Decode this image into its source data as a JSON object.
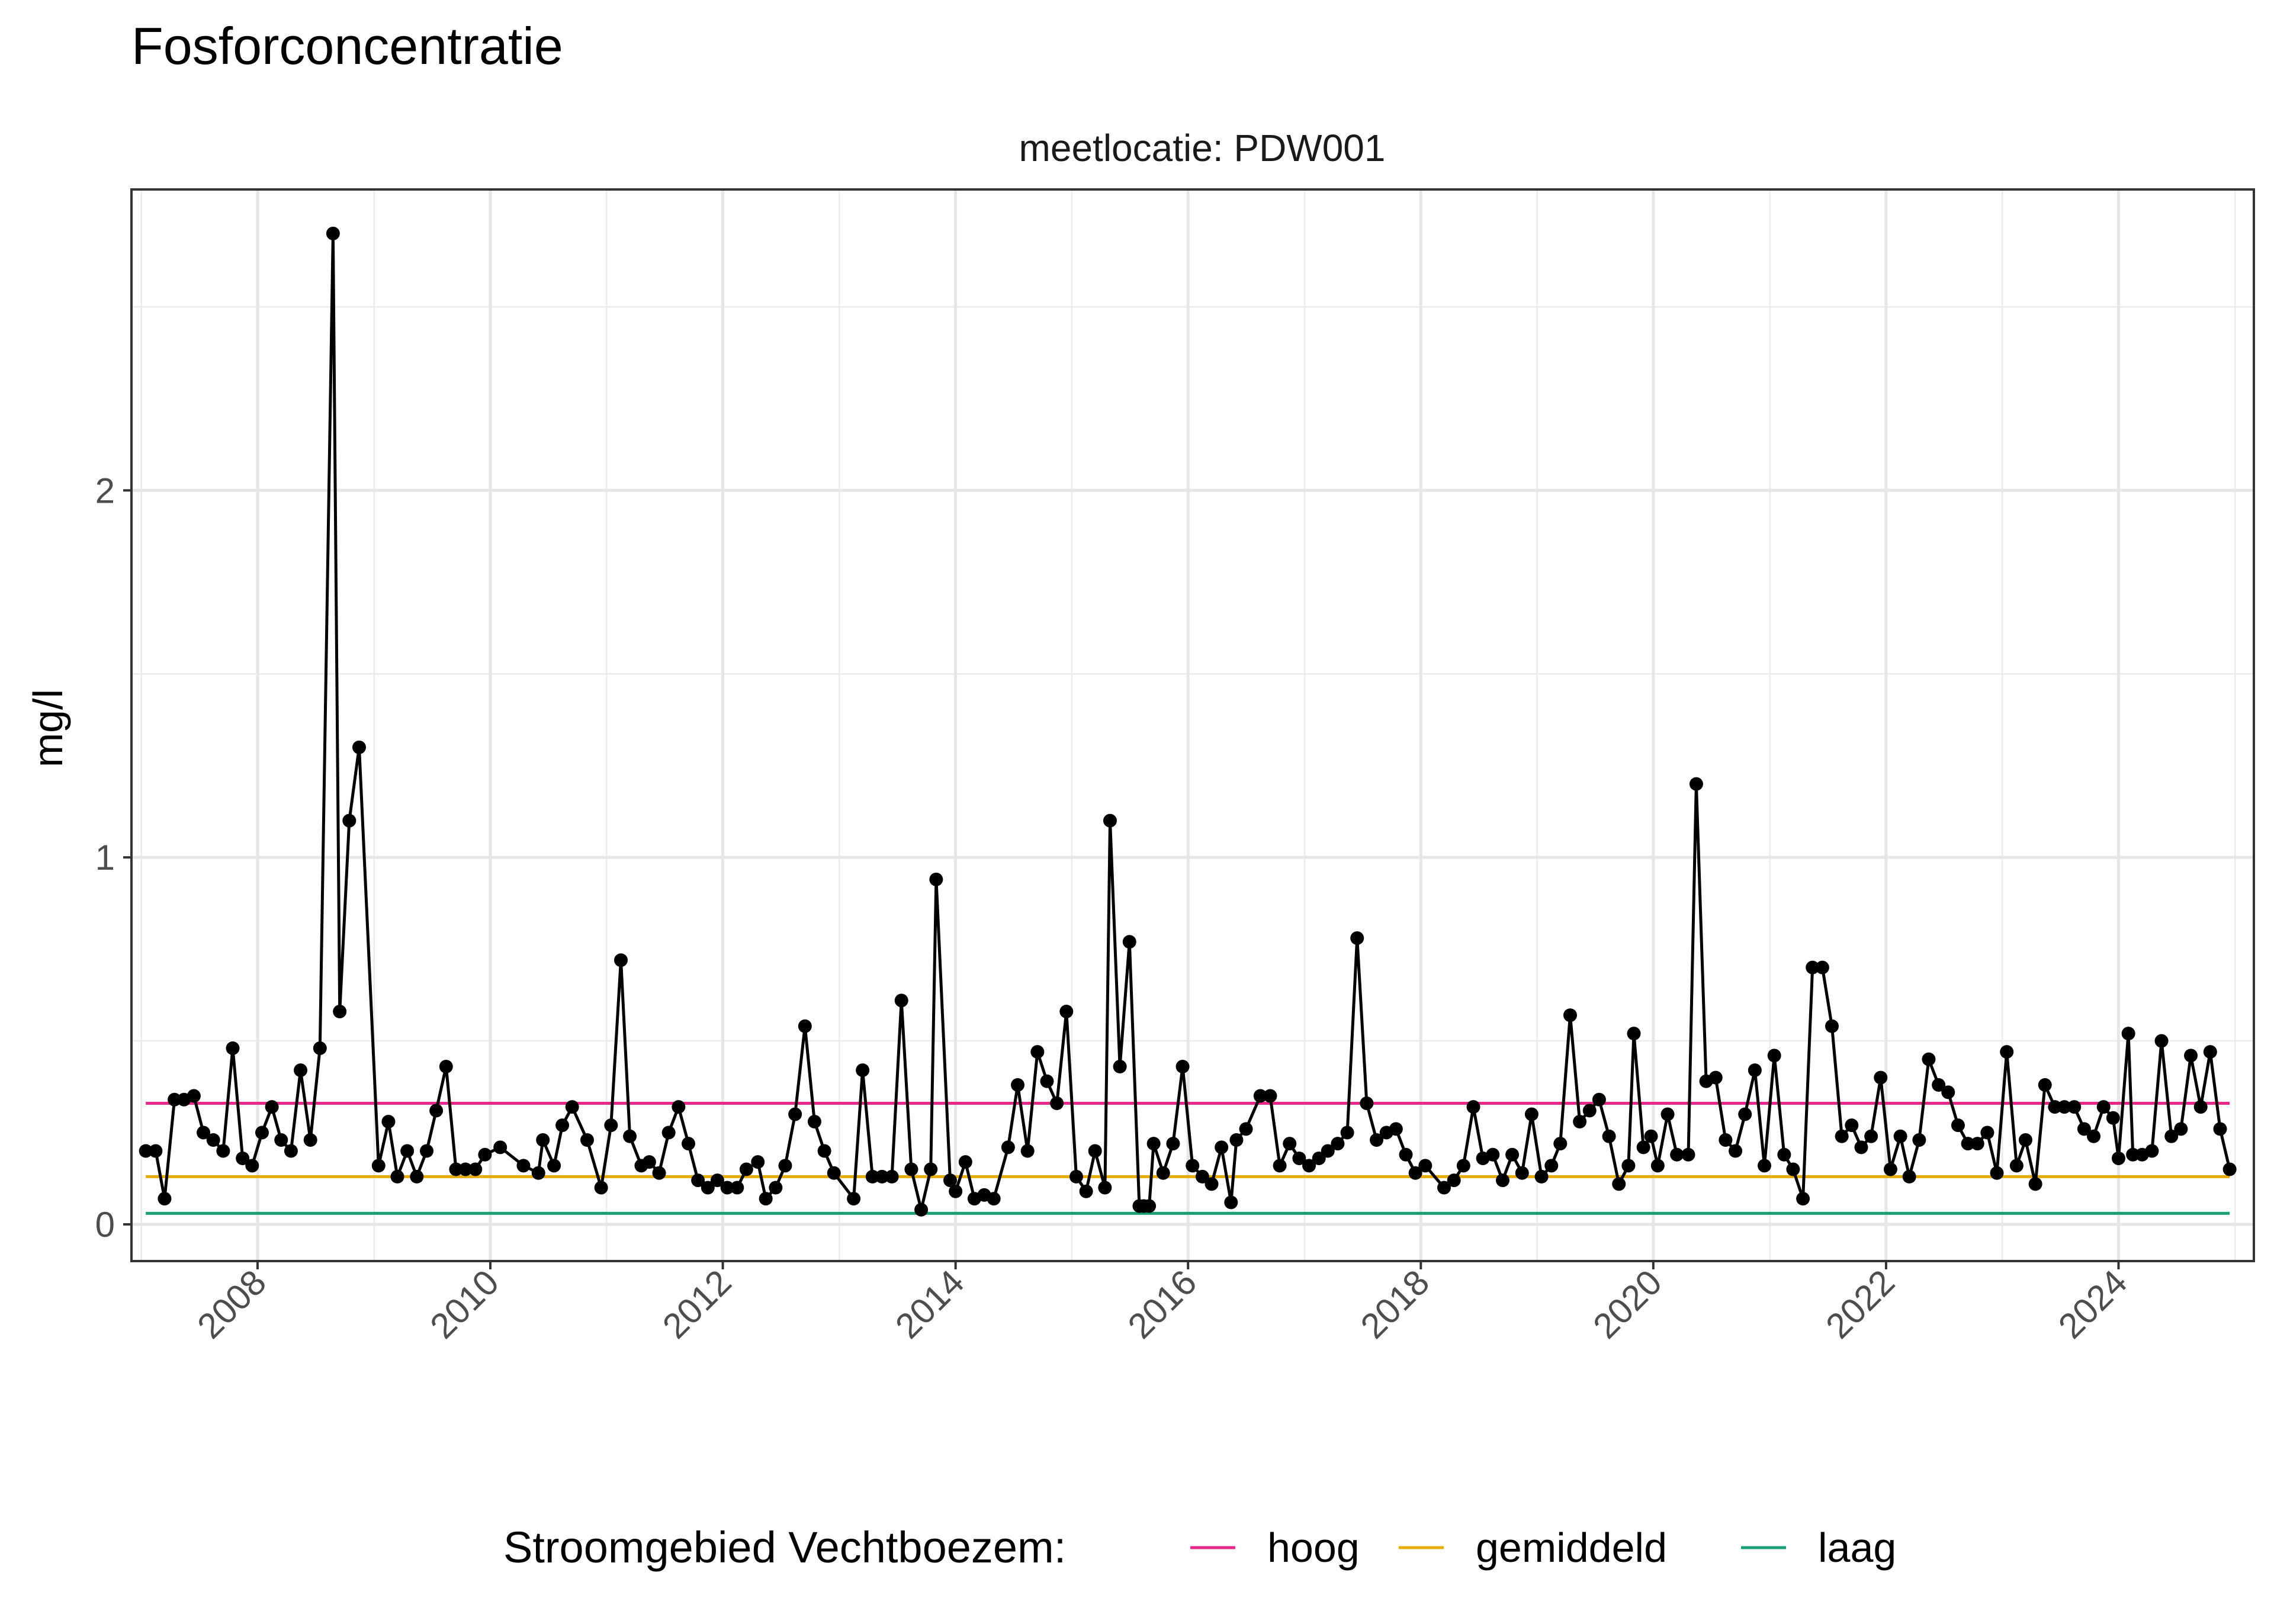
{
  "chart_data": {
    "type": "line",
    "title": "Fosforconcentratie",
    "subtitle": "meetlocatie: PDW001",
    "ylabel": "mg/l",
    "xlabel": "",
    "xlim": [
      "2006-12-01",
      "2025-03-01"
    ],
    "ylim": [
      -0.1,
      2.82
    ],
    "x_ticks": [
      "2008",
      "2010",
      "2012",
      "2014",
      "2016",
      "2018",
      "2020",
      "2022",
      "2024"
    ],
    "y_ticks": [
      "0",
      "1",
      "2"
    ],
    "grid": true,
    "legend": {
      "position": "bottom",
      "title": "Stroomgebied Vechtboezem:",
      "entries": [
        {
          "label": "hoog",
          "color": "#e7298a"
        },
        {
          "label": "gemiddeld",
          "color": "#e6ab02"
        },
        {
          "label": "laag",
          "color": "#1b9e77"
        }
      ]
    },
    "reference_lines": [
      {
        "name": "hoog",
        "value": 0.33,
        "x_range": [
          "2007-01-15",
          "2024-12-15"
        ],
        "color": "#e7298a"
      },
      {
        "name": "gemiddeld",
        "value": 0.13,
        "x_range": [
          "2007-01-15",
          "2024-12-15"
        ],
        "color": "#e6ab02"
      },
      {
        "name": "laag",
        "value": 0.03,
        "x_range": [
          "2007-01-15",
          "2024-12-15"
        ],
        "color": "#1b9e77"
      }
    ],
    "series": [
      {
        "color": "#000000",
        "points": [
          [
            "2007-01-15",
            0.2
          ],
          [
            "2007-02-15",
            0.2
          ],
          [
            "2007-03-15",
            0.07
          ],
          [
            "2007-04-15",
            0.34
          ],
          [
            "2007-05-15",
            0.34
          ],
          [
            "2007-06-15",
            0.35
          ],
          [
            "2007-07-15",
            0.25
          ],
          [
            "2007-08-15",
            0.23
          ],
          [
            "2007-09-15",
            0.2
          ],
          [
            "2007-10-15",
            0.48
          ],
          [
            "2007-11-15",
            0.18
          ],
          [
            "2007-12-15",
            0.16
          ],
          [
            "2008-01-15",
            0.25
          ],
          [
            "2008-02-15",
            0.32
          ],
          [
            "2008-03-15",
            0.23
          ],
          [
            "2008-04-15",
            0.2
          ],
          [
            "2008-05-15",
            0.42
          ],
          [
            "2008-06-15",
            0.23
          ],
          [
            "2008-07-15",
            0.48
          ],
          [
            "2008-08-25",
            2.7
          ],
          [
            "2008-09-15",
            0.58
          ],
          [
            "2008-10-15",
            1.1
          ],
          [
            "2008-11-15",
            1.3
          ],
          [
            "2009-01-15",
            0.16
          ],
          [
            "2009-02-15",
            0.28
          ],
          [
            "2009-03-15",
            0.13
          ],
          [
            "2009-04-15",
            0.2
          ],
          [
            "2009-05-15",
            0.13
          ],
          [
            "2009-06-15",
            0.2
          ],
          [
            "2009-07-15",
            0.31
          ],
          [
            "2009-08-15",
            0.43
          ],
          [
            "2009-09-15",
            0.15
          ],
          [
            "2009-10-15",
            0.15
          ],
          [
            "2009-11-15",
            0.15
          ],
          [
            "2009-12-15",
            0.19
          ],
          [
            "2010-02-01",
            0.21
          ],
          [
            "2010-04-15",
            0.16
          ],
          [
            "2010-06-01",
            0.14
          ],
          [
            "2010-06-15",
            0.23
          ],
          [
            "2010-07-20",
            0.16
          ],
          [
            "2010-08-15",
            0.27
          ],
          [
            "2010-09-15",
            0.32
          ],
          [
            "2010-11-01",
            0.23
          ],
          [
            "2010-12-15",
            0.1
          ],
          [
            "2011-01-15",
            0.27
          ],
          [
            "2011-02-15",
            0.72
          ],
          [
            "2011-03-15",
            0.24
          ],
          [
            "2011-04-20",
            0.16
          ],
          [
            "2011-05-15",
            0.17
          ],
          [
            "2011-06-15",
            0.14
          ],
          [
            "2011-07-15",
            0.25
          ],
          [
            "2011-08-15",
            0.32
          ],
          [
            "2011-09-15",
            0.22
          ],
          [
            "2011-10-15",
            0.12
          ],
          [
            "2011-11-15",
            0.1
          ],
          [
            "2011-12-15",
            0.12
          ],
          [
            "2012-01-15",
            0.1
          ],
          [
            "2012-02-15",
            0.1
          ],
          [
            "2012-03-15",
            0.15
          ],
          [
            "2012-04-20",
            0.17
          ],
          [
            "2012-05-15",
            0.07
          ],
          [
            "2012-06-15",
            0.1
          ],
          [
            "2012-07-15",
            0.16
          ],
          [
            "2012-08-15",
            0.3
          ],
          [
            "2012-09-15",
            0.54
          ],
          [
            "2012-10-15",
            0.28
          ],
          [
            "2012-11-15",
            0.2
          ],
          [
            "2012-12-15",
            0.14
          ],
          [
            "2013-02-15",
            0.07
          ],
          [
            "2013-03-15",
            0.42
          ],
          [
            "2013-04-15",
            0.13
          ],
          [
            "2013-05-15",
            0.13
          ],
          [
            "2013-06-15",
            0.13
          ],
          [
            "2013-07-15",
            0.61
          ],
          [
            "2013-08-15",
            0.15
          ],
          [
            "2013-09-15",
            0.04
          ],
          [
            "2013-10-15",
            0.15
          ],
          [
            "2013-11-01",
            0.94
          ],
          [
            "2013-12-15",
            0.12
          ],
          [
            "2014-01-01",
            0.09
          ],
          [
            "2014-02-01",
            0.17
          ],
          [
            "2014-03-01",
            0.07
          ],
          [
            "2014-04-01",
            0.08
          ],
          [
            "2014-05-01",
            0.07
          ],
          [
            "2014-06-15",
            0.21
          ],
          [
            "2014-07-15",
            0.38
          ],
          [
            "2014-08-15",
            0.2
          ],
          [
            "2014-09-15",
            0.47
          ],
          [
            "2014-10-15",
            0.39
          ],
          [
            "2014-11-15",
            0.33
          ],
          [
            "2014-12-15",
            0.58
          ],
          [
            "2015-01-15",
            0.13
          ],
          [
            "2015-02-15",
            0.09
          ],
          [
            "2015-03-15",
            0.2
          ],
          [
            "2015-04-15",
            0.1
          ],
          [
            "2015-05-01",
            1.1
          ],
          [
            "2015-06-01",
            0.43
          ],
          [
            "2015-07-01",
            0.77
          ],
          [
            "2015-08-01",
            0.05
          ],
          [
            "2015-08-15",
            0.05
          ],
          [
            "2015-09-01",
            0.05
          ],
          [
            "2015-09-15",
            0.22
          ],
          [
            "2015-10-15",
            0.14
          ],
          [
            "2015-11-15",
            0.22
          ],
          [
            "2015-12-15",
            0.43
          ],
          [
            "2016-01-15",
            0.16
          ],
          [
            "2016-02-15",
            0.13
          ],
          [
            "2016-03-15",
            0.11
          ],
          [
            "2016-04-15",
            0.21
          ],
          [
            "2016-05-15",
            0.06
          ],
          [
            "2016-06-01",
            0.23
          ],
          [
            "2016-07-01",
            0.26
          ],
          [
            "2016-08-15",
            0.35
          ],
          [
            "2016-09-15",
            0.35
          ],
          [
            "2016-10-15",
            0.16
          ],
          [
            "2016-11-15",
            0.22
          ],
          [
            "2016-12-15",
            0.18
          ],
          [
            "2017-01-15",
            0.16
          ],
          [
            "2017-02-15",
            0.18
          ],
          [
            "2017-03-15",
            0.2
          ],
          [
            "2017-04-15",
            0.22
          ],
          [
            "2017-05-15",
            0.25
          ],
          [
            "2017-06-15",
            0.78
          ],
          [
            "2017-07-15",
            0.33
          ],
          [
            "2017-08-15",
            0.23
          ],
          [
            "2017-09-15",
            0.25
          ],
          [
            "2017-10-15",
            0.26
          ],
          [
            "2017-11-15",
            0.19
          ],
          [
            "2017-12-15",
            0.14
          ],
          [
            "2018-01-15",
            0.16
          ],
          [
            "2018-03-15",
            0.1
          ],
          [
            "2018-04-15",
            0.12
          ],
          [
            "2018-05-15",
            0.16
          ],
          [
            "2018-06-15",
            0.32
          ],
          [
            "2018-07-15",
            0.18
          ],
          [
            "2018-08-15",
            0.19
          ],
          [
            "2018-09-15",
            0.12
          ],
          [
            "2018-10-15",
            0.19
          ],
          [
            "2018-11-15",
            0.14
          ],
          [
            "2018-12-15",
            0.3
          ],
          [
            "2019-01-15",
            0.13
          ],
          [
            "2019-02-15",
            0.16
          ],
          [
            "2019-03-15",
            0.22
          ],
          [
            "2019-04-15",
            0.57
          ],
          [
            "2019-05-15",
            0.28
          ],
          [
            "2019-06-15",
            0.31
          ],
          [
            "2019-07-15",
            0.34
          ],
          [
            "2019-08-15",
            0.24
          ],
          [
            "2019-09-15",
            0.11
          ],
          [
            "2019-10-15",
            0.16
          ],
          [
            "2019-11-01",
            0.52
          ],
          [
            "2019-12-01",
            0.21
          ],
          [
            "2019-12-25",
            0.24
          ],
          [
            "2020-01-15",
            0.16
          ],
          [
            "2020-02-15",
            0.3
          ],
          [
            "2020-03-15",
            0.19
          ],
          [
            "2020-04-20",
            0.19
          ],
          [
            "2020-05-15",
            1.2
          ],
          [
            "2020-06-15",
            0.39
          ],
          [
            "2020-07-15",
            0.4
          ],
          [
            "2020-08-15",
            0.23
          ],
          [
            "2020-09-15",
            0.2
          ],
          [
            "2020-10-15",
            0.3
          ],
          [
            "2020-11-15",
            0.42
          ],
          [
            "2020-12-15",
            0.16
          ],
          [
            "2021-01-15",
            0.46
          ],
          [
            "2021-02-15",
            0.19
          ],
          [
            "2021-03-15",
            0.15
          ],
          [
            "2021-04-15",
            0.07
          ],
          [
            "2021-05-15",
            0.7
          ],
          [
            "2021-06-15",
            0.7
          ],
          [
            "2021-07-15",
            0.54
          ],
          [
            "2021-08-15",
            0.24
          ],
          [
            "2021-09-15",
            0.27
          ],
          [
            "2021-10-15",
            0.21
          ],
          [
            "2021-11-15",
            0.24
          ],
          [
            "2021-12-15",
            0.4
          ],
          [
            "2022-01-15",
            0.15
          ],
          [
            "2022-02-15",
            0.24
          ],
          [
            "2022-03-15",
            0.13
          ],
          [
            "2022-04-15",
            0.23
          ],
          [
            "2022-05-15",
            0.45
          ],
          [
            "2022-06-15",
            0.38
          ],
          [
            "2022-07-15",
            0.36
          ],
          [
            "2022-08-15",
            0.27
          ],
          [
            "2022-09-15",
            0.22
          ],
          [
            "2022-10-15",
            0.22
          ],
          [
            "2022-11-15",
            0.25
          ],
          [
            "2022-12-15",
            0.14
          ],
          [
            "2023-01-15",
            0.47
          ],
          [
            "2023-02-15",
            0.16
          ],
          [
            "2023-03-15",
            0.23
          ],
          [
            "2023-04-15",
            0.11
          ],
          [
            "2023-05-15",
            0.38
          ],
          [
            "2023-06-15",
            0.32
          ],
          [
            "2023-07-15",
            0.32
          ],
          [
            "2023-08-15",
            0.32
          ],
          [
            "2023-09-15",
            0.26
          ],
          [
            "2023-10-15",
            0.24
          ],
          [
            "2023-11-15",
            0.32
          ],
          [
            "2023-12-15",
            0.29
          ],
          [
            "2024-01-01",
            0.18
          ],
          [
            "2024-02-01",
            0.52
          ],
          [
            "2024-02-15",
            0.19
          ],
          [
            "2024-03-15",
            0.19
          ],
          [
            "2024-04-15",
            0.2
          ],
          [
            "2024-05-15",
            0.5
          ],
          [
            "2024-06-15",
            0.24
          ],
          [
            "2024-07-15",
            0.26
          ],
          [
            "2024-08-15",
            0.46
          ],
          [
            "2024-09-15",
            0.32
          ],
          [
            "2024-10-15",
            0.47
          ],
          [
            "2024-11-15",
            0.26
          ],
          [
            "2024-12-15",
            0.15
          ]
        ]
      }
    ]
  }
}
